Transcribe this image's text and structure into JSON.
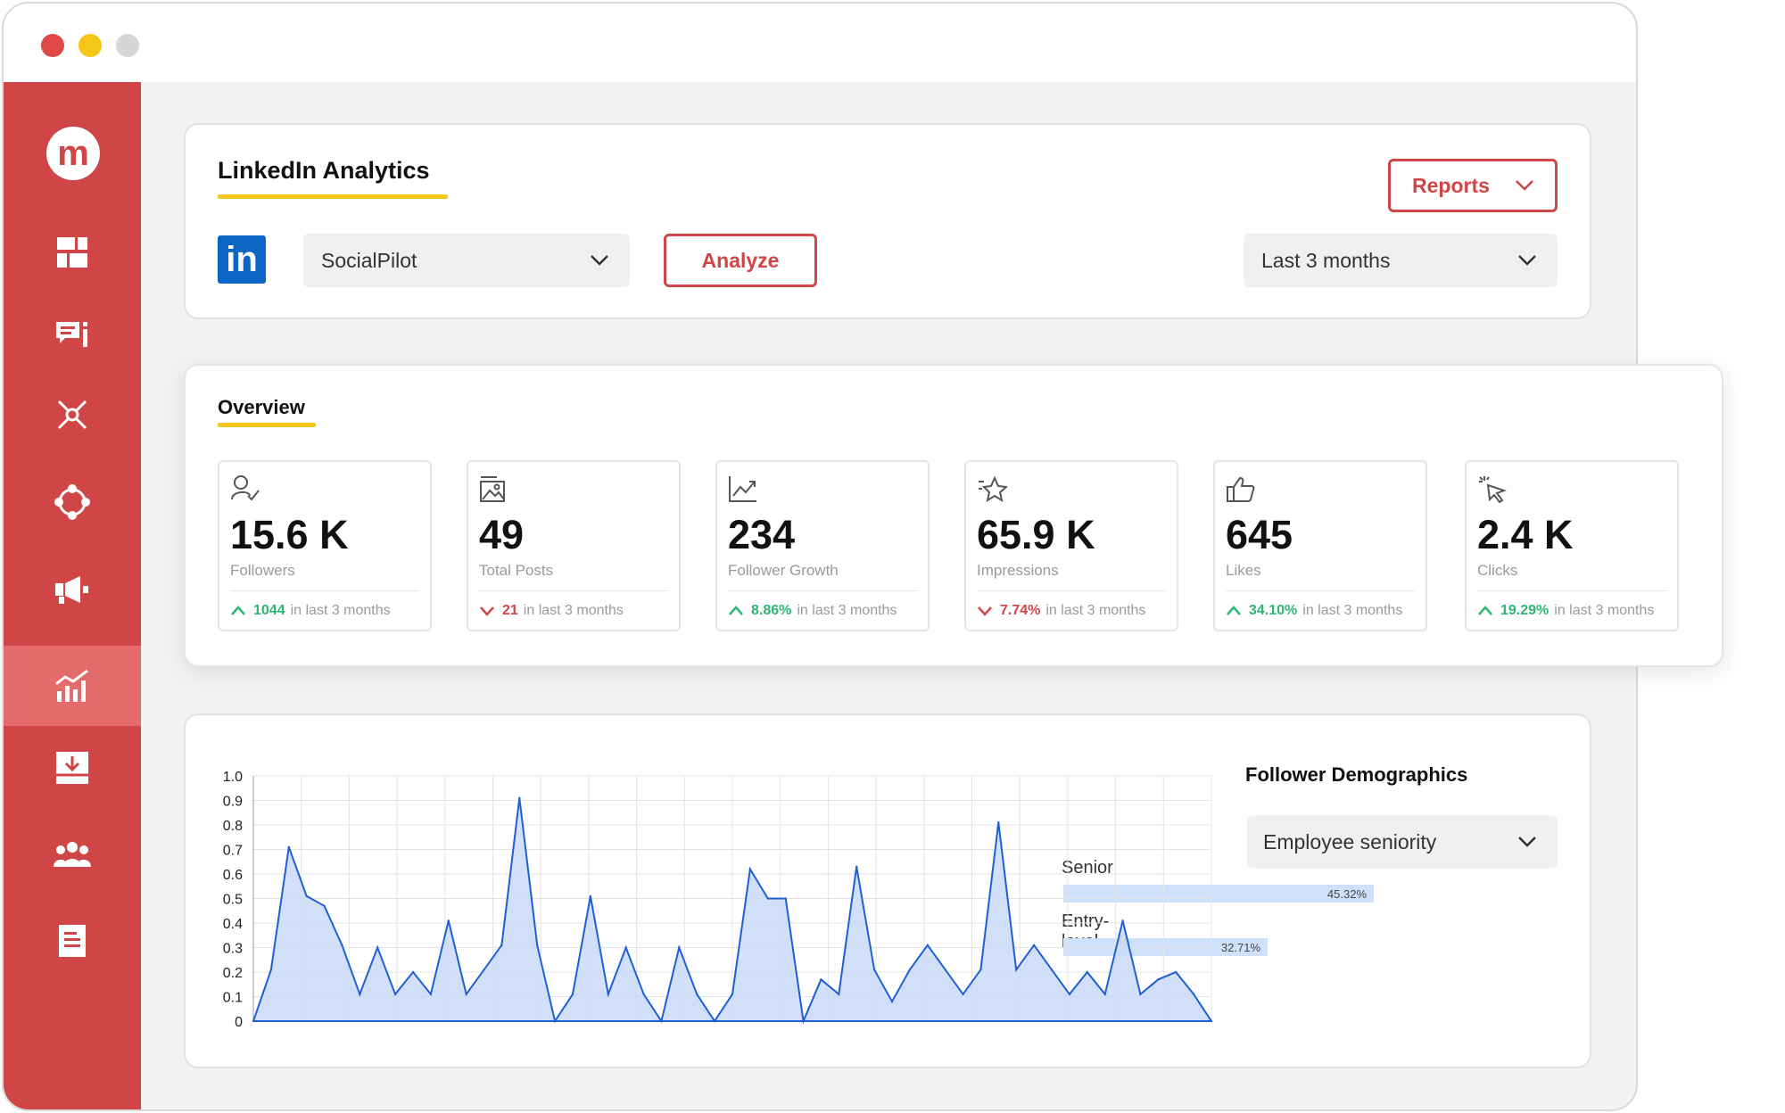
{
  "header": {
    "title": "LinkedIn Analytics",
    "account_select": "SocialPilot",
    "analyze_label": "Analyze",
    "reports_label": "Reports",
    "period_select": "Last 3 months"
  },
  "sidebar": {
    "logo": "m",
    "items": [
      {
        "icon": "dashboard-icon"
      },
      {
        "icon": "posts-icon"
      },
      {
        "icon": "connections-icon"
      },
      {
        "icon": "network-icon"
      },
      {
        "icon": "megaphone-icon"
      },
      {
        "icon": "analytics-icon",
        "active": true
      },
      {
        "icon": "inbox-download-icon"
      },
      {
        "icon": "team-icon"
      },
      {
        "icon": "document-icon"
      }
    ]
  },
  "overview": {
    "title": "Overview",
    "stats": [
      {
        "icon": "user-check-icon",
        "value": "15.6 K",
        "label": "Followers",
        "change": "1044",
        "direction": "up",
        "period": "in last 3 months"
      },
      {
        "icon": "image-icon",
        "value": "49",
        "label": "Total Posts",
        "change": "21",
        "direction": "down",
        "period": "in last 3 months"
      },
      {
        "icon": "trend-up-icon",
        "value": "234",
        "label": "Follower Growth",
        "change": "8.86%",
        "direction": "up",
        "period": "in last 3 months"
      },
      {
        "icon": "star-icon",
        "value": "65.9 K",
        "label": "Impressions",
        "change": "7.74%",
        "direction": "down",
        "period": "in last 3 months"
      },
      {
        "icon": "thumbs-up-icon",
        "value": "645",
        "label": "Likes",
        "change": "34.10%",
        "direction": "up",
        "period": "in last 3 months"
      },
      {
        "icon": "cursor-click-icon",
        "value": "2.4 K",
        "label": "Clicks",
        "change": "19.29%",
        "direction": "up",
        "period": "in last 3 months"
      }
    ]
  },
  "colors": {
    "up": "#2bb673",
    "down": "#d04646",
    "brand": "#d04646",
    "accent": "#f5c518",
    "line": "#1f5fd6"
  },
  "chart_data": {
    "type": "area",
    "title": "",
    "xlabel": "",
    "ylabel": "",
    "ylim": [
      0,
      1.0
    ],
    "yticks": [
      "1.0",
      "0.9",
      "0.8",
      "0.7",
      "0.6",
      "0.5",
      "0.4",
      "0.3",
      "0.2",
      "0.1",
      "0"
    ],
    "grid": true,
    "series": [
      {
        "values": [
          0,
          0.21,
          0.71,
          0.51,
          0.47,
          0.31,
          0.11,
          0.3,
          0.11,
          0.2,
          0.11,
          0.41,
          0.11,
          0.21,
          0.31,
          0.91,
          0.31,
          0,
          0.11,
          0.51,
          0.11,
          0.3,
          0.11,
          0,
          0.3,
          0.11,
          0,
          0.11,
          0.62,
          0.5,
          0.5,
          0,
          0.17,
          0.11,
          0.63,
          0.21,
          0.08,
          0.21,
          0.31,
          0.21,
          0.11,
          0.21,
          0.81,
          0.21,
          0.31,
          0.21,
          0.11,
          0.2,
          0.11,
          0.41,
          0.11,
          0.17,
          0.2,
          0.11,
          0
        ]
      }
    ]
  },
  "demographics": {
    "title": "Follower Demographics",
    "select": "Employee seniority",
    "bars": [
      {
        "label": "Senior",
        "value_text": "45.32%",
        "value": 45.32
      },
      {
        "label": "Entry-level",
        "value_text": "32.71%",
        "value": 32.71
      }
    ]
  }
}
